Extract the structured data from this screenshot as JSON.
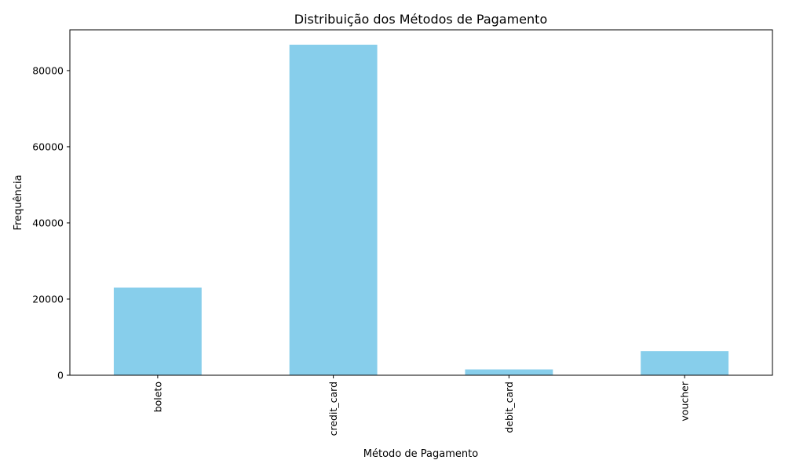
{
  "chart_data": {
    "type": "bar",
    "title": "Distribuição dos Métodos de Pagamento",
    "xlabel": "Método de Pagamento",
    "ylabel": "Frequência",
    "categories": [
      "boleto",
      "credit_card",
      "debit_card",
      "voucher"
    ],
    "values": [
      23000,
      86800,
      1530,
      6350
    ],
    "ylim": [
      0,
      90700
    ],
    "yticks": [
      0,
      20000,
      40000,
      60000,
      80000
    ],
    "ytick_labels": [
      "0",
      "20000",
      "40000",
      "60000",
      "80000"
    ],
    "grid": false,
    "legend": "none",
    "bar_color": "#87CEEB",
    "axis_color": "#000000"
  }
}
